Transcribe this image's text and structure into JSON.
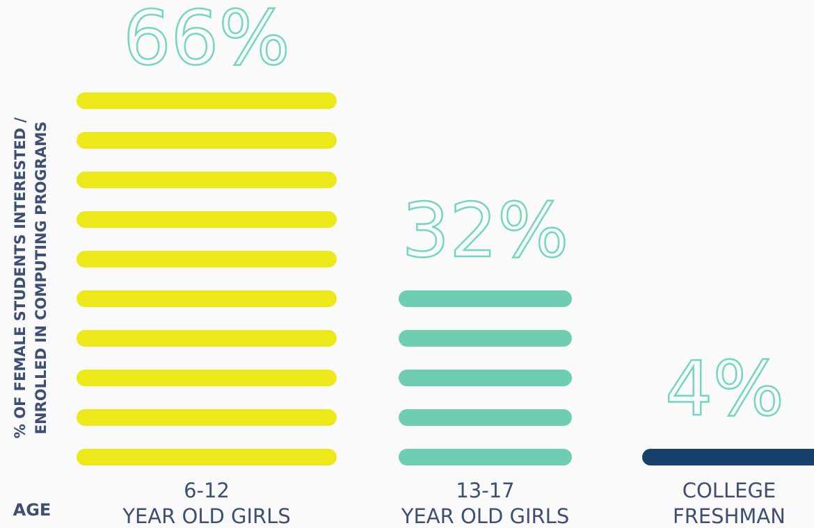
{
  "chart_data": {
    "type": "stripe-bar",
    "y_label": [
      "% OF FEMALE STUDENTS INTERESTED /",
      "ENROLLED IN COMPUTING PROGRAMS"
    ],
    "x_label": "AGE",
    "categories": [
      [
        "6-12",
        "YEAR OLD GIRLS"
      ],
      [
        "13-17",
        "YEAR OLD GIRLS"
      ],
      [
        "COLLEGE",
        "FRESHMAN"
      ]
    ],
    "values": [
      66,
      32,
      4
    ],
    "value_labels": [
      "66%",
      "32%",
      "4%"
    ],
    "colors": [
      "#ede81a",
      "#6fcdb4",
      "#17416b"
    ],
    "label_color": "#72d6c1"
  }
}
